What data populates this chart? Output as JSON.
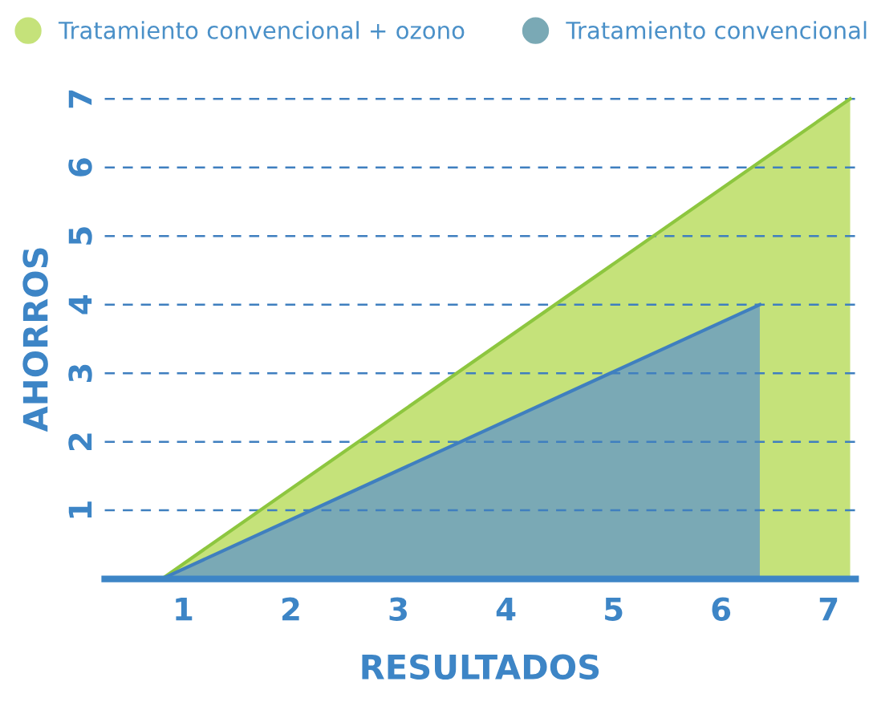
{
  "chart_data": {
    "type": "area",
    "xlabel": "RESULTADOS",
    "ylabel": "AHORROS",
    "xlim": [
      0.27,
      7.25
    ],
    "ylim": [
      0,
      7
    ],
    "xticks": [
      1,
      2,
      3,
      4,
      5,
      6,
      7
    ],
    "yticks": [
      {
        "value": 0,
        "label": null
      },
      1,
      2,
      3,
      4,
      5,
      6,
      7
    ],
    "grid": "y",
    "legend": "top",
    "series": [
      {
        "name": "Tratamiento convencional + ozono",
        "color": "#c5e27a",
        "x": [
          0.8,
          7.2
        ],
        "values": [
          0,
          7
        ]
      },
      {
        "name": "Tratamiento convencional",
        "color": "#7aa9b5",
        "x": [
          0.8,
          6.36
        ],
        "values": [
          0,
          4
        ]
      }
    ]
  }
}
